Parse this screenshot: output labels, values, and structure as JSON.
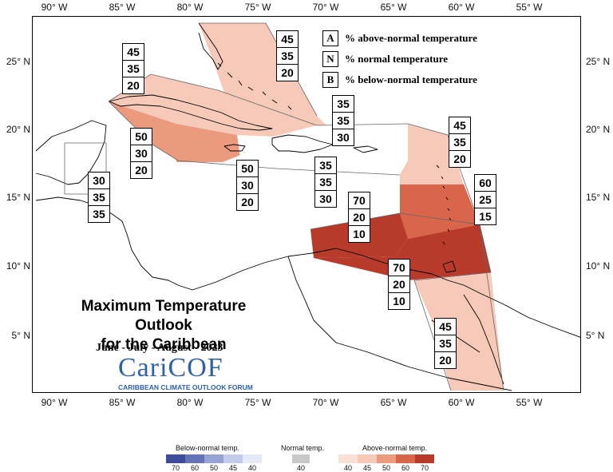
{
  "map": {
    "longitude_ticks": [
      "90° W",
      "85° W",
      "80° W",
      "75° W",
      "70° W",
      "65° W",
      "60° W",
      "55° W"
    ],
    "latitude_ticks": [
      "25° N",
      "20° N",
      "15° N",
      "10° N",
      "5° N"
    ]
  },
  "legend": {
    "rows": [
      {
        "key": "A",
        "text": "% above-normal temperature"
      },
      {
        "key": "N",
        "text": "% normal temperature"
      },
      {
        "key": "B",
        "text": "% below-normal temperature"
      }
    ]
  },
  "title": {
    "line1": "Maximum Temperature Outlook",
    "line2": "for the Caribbean",
    "season": "June - July - August - 2023"
  },
  "logo": {
    "name": "CariCOF",
    "subtitle": "CARIBBEAN CLIMATE OUTLOOK FORUM"
  },
  "regions": [
    {
      "id": "bahamas",
      "above": "45",
      "normal": "35",
      "below": "20",
      "color": "#f6c9b9"
    },
    {
      "id": "cuba",
      "above": "45",
      "normal": "35",
      "below": "20",
      "color": "#f6c9b9"
    },
    {
      "id": "cayman-west",
      "above": "50",
      "normal": "30",
      "below": "20",
      "color": "#ec9a7e"
    },
    {
      "id": "jamaica",
      "above": "50",
      "normal": "30",
      "below": "20",
      "color": "#ec9a7e"
    },
    {
      "id": "belize",
      "above": "30",
      "normal": "35",
      "below": "35",
      "color": "#ffffff"
    },
    {
      "id": "hispaniola",
      "above": "35",
      "normal": "35",
      "below": "30",
      "color": "#ffffff"
    },
    {
      "id": "puerto-rico",
      "above": "35",
      "normal": "35",
      "below": "30",
      "color": "#ffffff"
    },
    {
      "id": "northern-lesser-antilles",
      "above": "45",
      "normal": "35",
      "below": "20",
      "color": "#f6c9b9"
    },
    {
      "id": "windward-islands",
      "above": "60",
      "normal": "25",
      "below": "15",
      "color": "#d9654a"
    },
    {
      "id": "abc-islands",
      "above": "70",
      "normal": "20",
      "below": "10",
      "color": "#b73a2a"
    },
    {
      "id": "trinidad-venezuela",
      "above": "70",
      "normal": "20",
      "below": "10",
      "color": "#b73a2a"
    },
    {
      "id": "guianas",
      "above": "45",
      "normal": "35",
      "below": "20",
      "color": "#f6c9b9"
    }
  ],
  "colorbar": {
    "below": {
      "title": "Below-normal temp.",
      "labels": [
        "70",
        "60",
        "50",
        "45",
        "40"
      ],
      "colors": [
        "#3e4b9a",
        "#6573b8",
        "#98a2d4",
        "#c4caea",
        "#e6eaf8"
      ]
    },
    "normal": {
      "title": "Normal temp.",
      "labels": [
        "40"
      ],
      "colors": [
        "#c8c8c8"
      ]
    },
    "above": {
      "title": "Above-normal temp.",
      "labels": [
        "40",
        "45",
        "50",
        "60",
        "70"
      ],
      "colors": [
        "#fbe0d6",
        "#f6c9b9",
        "#ec9a7e",
        "#d9654a",
        "#b73a2a"
      ]
    }
  }
}
